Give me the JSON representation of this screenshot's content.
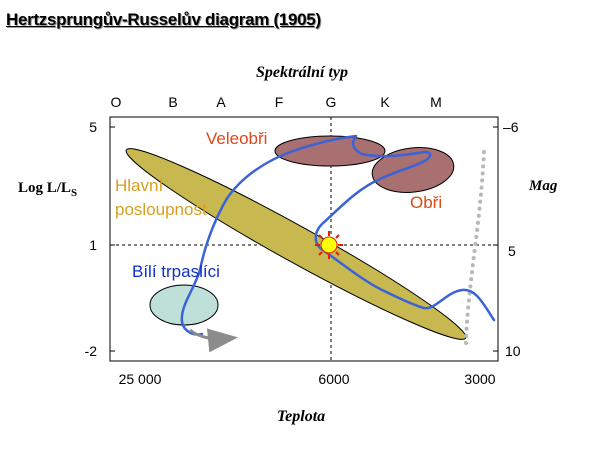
{
  "title": "Hertzsprungův-Russelův diagram (1905)",
  "axes": {
    "top_title": "Spektrální typ",
    "bottom_title": "Teplota",
    "left_title_main": "Log L/L",
    "left_title_sub": "S",
    "right_title": "Mag",
    "spectral_types": [
      "O",
      "B",
      "A",
      "F",
      "G",
      "K",
      "M"
    ],
    "left_ticks": [
      "5",
      "1",
      "-2"
    ],
    "right_ticks": [
      "–6",
      "5",
      "10"
    ],
    "bottom_ticks": [
      "25 000",
      "6000",
      "3000"
    ]
  },
  "regions": {
    "supergiants": "Veleobři",
    "giants": "Obři",
    "main_sequence_line1": "Hlavní",
    "main_sequence_line2": "posloupnost",
    "white_dwarfs": "Bílí trpaslíci"
  },
  "colors": {
    "main_sequence_fill": "#c8b850",
    "giant_fill": "#a87070",
    "white_dwarf_fill": "#bfe0d8",
    "track_blue": "#3a63d8",
    "supergiant_label": "#e04818",
    "main_sequence_label": "#d8a020",
    "white_dwarf_label": "#1030c8",
    "sun_yellow": "#ffff00",
    "sun_red": "#e02000",
    "dotted_gray": "#b8b8b8",
    "arrow_gray": "#8c8c8c"
  },
  "icons": {
    "sun": "sun-icon"
  }
}
